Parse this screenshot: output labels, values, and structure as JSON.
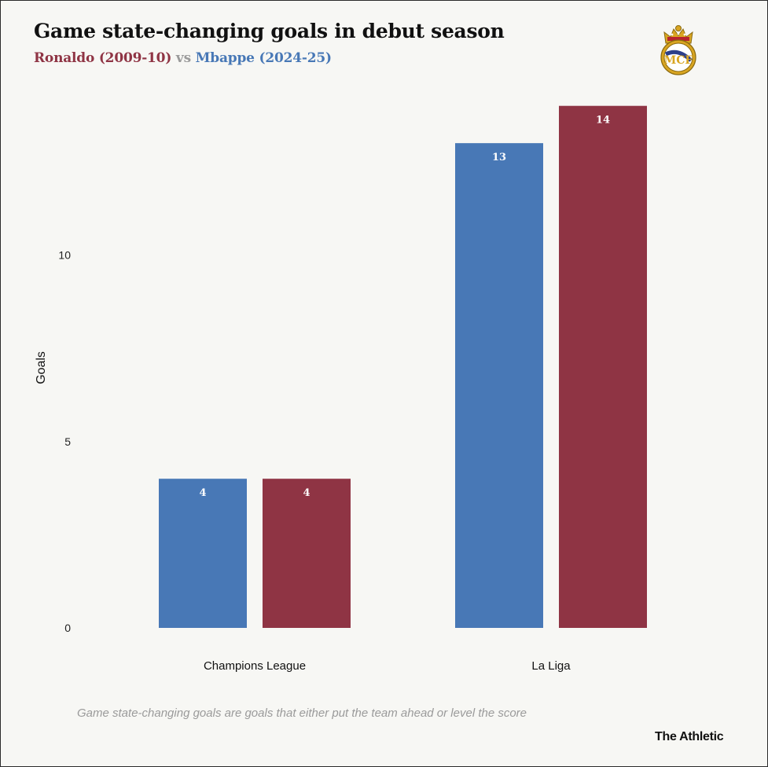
{
  "header": {
    "title": "Game state-changing goals in debut season",
    "subtitle_a": "Ronaldo (2009-10)",
    "subtitle_vs": "vs",
    "subtitle_b": "Mbappe (2024-25)"
  },
  "logo": {
    "icon": "real-madrid-crest-icon"
  },
  "colors": {
    "ronaldo": "#8f3444",
    "mbappe": "#4878b6",
    "vs": "#9a9a9a",
    "background": "#f7f7f4"
  },
  "chart_data": {
    "type": "bar",
    "title": "Game state-changing goals in debut season",
    "subtitle": "Ronaldo (2009-10) vs Mbappe (2024-25)",
    "xlabel": "",
    "ylabel": "Goals",
    "categories": [
      "Champions League",
      "La Liga"
    ],
    "series": [
      {
        "name": "Mbappe (2024-25)",
        "color": "#4878b6",
        "values": [
          4,
          13
        ]
      },
      {
        "name": "Ronaldo (2009-10)",
        "color": "#8f3444",
        "values": [
          4,
          14
        ]
      }
    ],
    "yticks": [
      0,
      5,
      10
    ],
    "ylim": [
      0,
      14
    ],
    "grid": false,
    "data_labels": true
  },
  "footer": {
    "note": "Game state-changing goals are goals that either put the team ahead or level the score",
    "brand": "The Athletic"
  }
}
